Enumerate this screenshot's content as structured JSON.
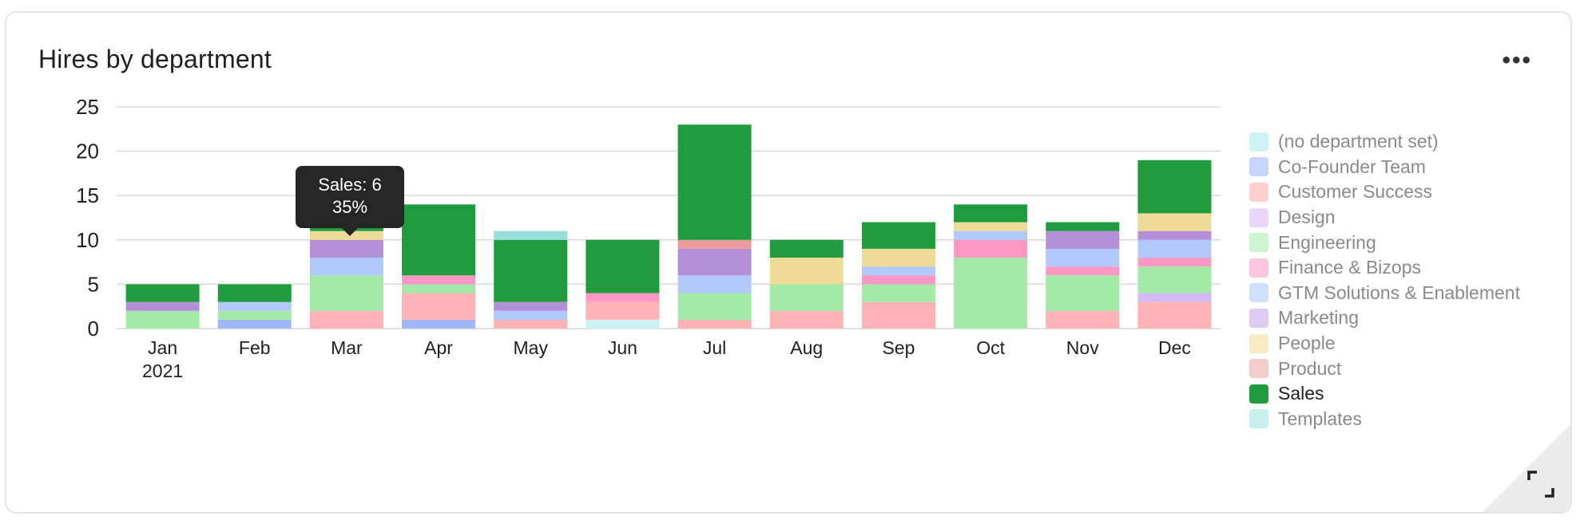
{
  "widget": {
    "title": "Hires by department",
    "menu_label": "•••"
  },
  "tooltip": {
    "line1": "Sales: 6",
    "line2": "35%"
  },
  "chart_data": {
    "type": "bar",
    "stacked": true,
    "title": "Hires by department",
    "xlabel": "",
    "ylabel": "",
    "ylim": [
      0,
      25
    ],
    "yticks": [
      0,
      5,
      10,
      15,
      20,
      25
    ],
    "grid": true,
    "legend_position": "right",
    "categories": [
      "Jan",
      "Feb",
      "Mar",
      "Apr",
      "May",
      "Jun",
      "Jul",
      "Aug",
      "Sep",
      "Oct",
      "Nov",
      "Dec"
    ],
    "category_sublabels": [
      "2021",
      "",
      "",
      "",
      "",
      "",
      "",
      "",
      "",
      "",
      "",
      ""
    ],
    "series": [
      {
        "name": "(no department set)",
        "color": "#cdf3f7",
        "values": [
          0,
          0,
          0,
          0,
          0,
          1,
          0,
          0,
          0,
          0,
          0,
          0
        ]
      },
      {
        "name": "Co-Founder Team",
        "color": "#9fb7f7",
        "values": [
          0,
          1,
          0,
          1,
          0,
          0,
          0,
          0,
          0,
          0,
          0,
          0
        ]
      },
      {
        "name": "Customer Success",
        "color": "#fcb3b6",
        "values": [
          0,
          0,
          2,
          3,
          1,
          2,
          1,
          2,
          3,
          0,
          2,
          3
        ]
      },
      {
        "name": "Design",
        "color": "#d3b8f2",
        "values": [
          0,
          0,
          0,
          0,
          0,
          0,
          0,
          0,
          0,
          0,
          0,
          1
        ]
      },
      {
        "name": "Engineering",
        "color": "#a3e9a8",
        "values": [
          2,
          1,
          4,
          1,
          0,
          0,
          3,
          3,
          2,
          8,
          4,
          3
        ]
      },
      {
        "name": "Finance & Bizops",
        "color": "#fd98c6",
        "values": [
          0,
          0,
          0,
          1,
          0,
          1,
          0,
          0,
          1,
          2,
          1,
          1
        ]
      },
      {
        "name": "GTM Solutions & Enablement",
        "color": "#b1c8fb",
        "values": [
          0,
          1,
          2,
          0,
          1,
          0,
          2,
          0,
          1,
          1,
          2,
          2
        ]
      },
      {
        "name": "Marketing",
        "color": "#b48fd8",
        "values": [
          1,
          0,
          2,
          0,
          1,
          0,
          3,
          0,
          0,
          0,
          2,
          1
        ]
      },
      {
        "name": "People",
        "color": "#efdb98",
        "values": [
          0,
          0,
          1,
          0,
          0,
          0,
          0,
          3,
          2,
          1,
          0,
          2
        ]
      },
      {
        "name": "Product",
        "color": "#eb9b9b",
        "values": [
          0,
          0,
          0,
          0,
          0,
          0,
          1,
          0,
          0,
          0,
          0,
          0
        ]
      },
      {
        "name": "Sales",
        "color": "#209c3e",
        "values": [
          2,
          2,
          6,
          8,
          7,
          6,
          13,
          2,
          3,
          2,
          1,
          6
        ]
      },
      {
        "name": "Templates",
        "color": "#98dcdc",
        "values": [
          0,
          0,
          0,
          0,
          1,
          0,
          0,
          0,
          0,
          0,
          0,
          0
        ]
      }
    ],
    "legend_swatch_colors": [
      "#cdf3f7",
      "#c4d4fc",
      "#fdd0d0",
      "#ead6f8",
      "#cdf3d1",
      "#fdc6e0",
      "#d0dffd",
      "#dccaf0",
      "#f8ebc5",
      "#f5cccc",
      "#209c3e",
      "#c9eeee"
    ],
    "active_series": "Sales",
    "hovered": {
      "category": "Mar",
      "series": "Sales",
      "value": 6,
      "percent": "35%"
    }
  }
}
